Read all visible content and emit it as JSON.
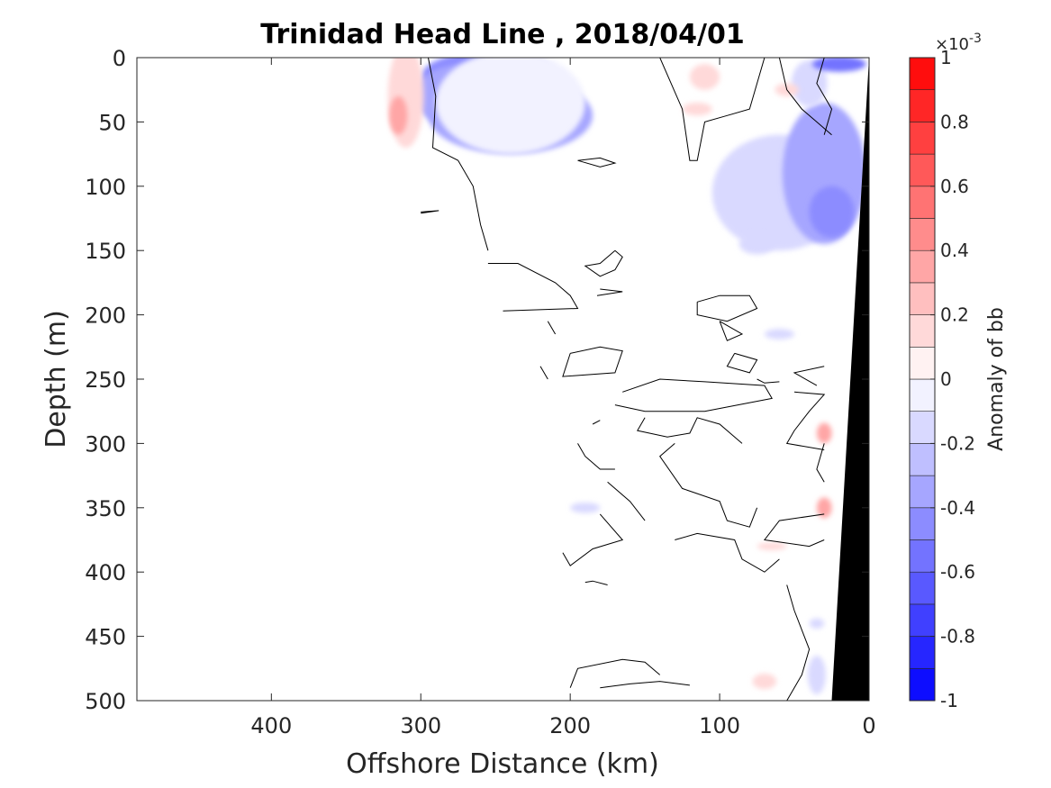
{
  "chart_data": {
    "type": "heatmap",
    "title": "Trinidad Head Line , 2018/04/01",
    "xlabel": "Offshore Distance (km)",
    "ylabel": "Depth (m)",
    "xlim": [
      490,
      0
    ],
    "ylim": [
      500,
      0
    ],
    "x_ticks": [
      400,
      300,
      200,
      100,
      0
    ],
    "x_tick_labels": [
      "400",
      "300",
      "200",
      "100",
      "0"
    ],
    "y_ticks": [
      0,
      50,
      100,
      150,
      200,
      250,
      300,
      350,
      400,
      450,
      500
    ],
    "y_tick_labels": [
      "0",
      "50",
      "100",
      "150",
      "200",
      "250",
      "300",
      "350",
      "400",
      "450",
      "500"
    ],
    "colorbar": {
      "label": "Anomaly of bb",
      "exponent_label": "×10",
      "exponent": "-3",
      "range": [
        -1,
        1
      ],
      "tick_values": [
        -1,
        -0.8,
        -0.6,
        -0.4,
        -0.2,
        0,
        0.2,
        0.4,
        0.6,
        0.8,
        1
      ],
      "tick_labels": [
        "-1",
        "-0.8",
        "-0.6",
        "-0.4",
        "-0.2",
        "0",
        "0.2",
        "0.4",
        "0.6",
        "0.8",
        "1"
      ],
      "levels": 20,
      "low_color": "#0000ff",
      "mid_color": "#ffffff",
      "high_color": "#ff0000"
    },
    "anomaly_patches": [
      {
        "x_km": 255,
        "depth_m": 5,
        "rx_km": 22,
        "ry_m": 8,
        "value": -1.0
      },
      {
        "x_km": 255,
        "depth_m": 15,
        "rx_km": 45,
        "ry_m": 20,
        "value": -0.5
      },
      {
        "x_km": 240,
        "depth_m": 45,
        "rx_km": 55,
        "ry_m": 30,
        "value": -0.3
      },
      {
        "x_km": 270,
        "depth_m": 30,
        "rx_km": 35,
        "ry_m": 25,
        "value": -0.3
      },
      {
        "x_km": 240,
        "depth_m": 35,
        "rx_km": 50,
        "ry_m": 40,
        "value": -0.1
      },
      {
        "x_km": 310,
        "depth_m": 30,
        "rx_km": 12,
        "ry_m": 40,
        "value": 0.2
      },
      {
        "x_km": 315,
        "depth_m": 45,
        "rx_km": 6,
        "ry_m": 15,
        "value": 0.3
      },
      {
        "x_km": 60,
        "depth_m": 105,
        "rx_km": 45,
        "ry_m": 45,
        "value": -0.2
      },
      {
        "x_km": 30,
        "depth_m": 90,
        "rx_km": 28,
        "ry_m": 55,
        "value": -0.35
      },
      {
        "x_km": 25,
        "depth_m": 120,
        "rx_km": 15,
        "ry_m": 20,
        "value": -0.5
      },
      {
        "x_km": 40,
        "depth_m": 20,
        "rx_km": 12,
        "ry_m": 18,
        "value": -0.2
      },
      {
        "x_km": 20,
        "depth_m": 5,
        "rx_km": 18,
        "ry_m": 6,
        "value": -0.6
      },
      {
        "x_km": 110,
        "depth_m": 15,
        "rx_km": 10,
        "ry_m": 10,
        "value": 0.2
      },
      {
        "x_km": 115,
        "depth_m": 40,
        "rx_km": 10,
        "ry_m": 5,
        "value": 0.2
      },
      {
        "x_km": 55,
        "depth_m": 25,
        "rx_km": 8,
        "ry_m": 5,
        "value": 0.15
      },
      {
        "x_km": 75,
        "depth_m": 145,
        "rx_km": 12,
        "ry_m": 8,
        "value": -0.15
      },
      {
        "x_km": 60,
        "depth_m": 215,
        "rx_km": 10,
        "ry_m": 4,
        "value": -0.15
      },
      {
        "x_km": 30,
        "depth_m": 292,
        "rx_km": 5,
        "ry_m": 8,
        "value": 0.3
      },
      {
        "x_km": 30,
        "depth_m": 350,
        "rx_km": 5,
        "ry_m": 8,
        "value": 0.3
      },
      {
        "x_km": 190,
        "depth_m": 350,
        "rx_km": 10,
        "ry_m": 4,
        "value": -0.15
      },
      {
        "x_km": 65,
        "depth_m": 380,
        "rx_km": 10,
        "ry_m": 3,
        "value": 0.15
      },
      {
        "x_km": 70,
        "depth_m": 485,
        "rx_km": 8,
        "ry_m": 6,
        "value": 0.2
      },
      {
        "x_km": 35,
        "depth_m": 480,
        "rx_km": 6,
        "ry_m": 15,
        "value": -0.15
      },
      {
        "x_km": 35,
        "depth_m": 440,
        "rx_km": 5,
        "ry_m": 4,
        "value": -0.15
      }
    ],
    "zero_contours": [
      [
        [
          295,
          0
        ],
        [
          290,
          30
        ],
        [
          292,
          70
        ],
        [
          275,
          80
        ],
        [
          265,
          100
        ],
        [
          260,
          130
        ],
        [
          255,
          150
        ]
      ],
      [
        [
          60,
          0
        ],
        [
          55,
          25
        ],
        [
          45,
          40
        ],
        [
          35,
          50
        ],
        [
          25,
          60
        ]
      ],
      [
        [
          140,
          0
        ],
        [
          125,
          40
        ],
        [
          120,
          80
        ],
        [
          115,
          80
        ],
        [
          110,
          50
        ],
        [
          95,
          45
        ],
        [
          80,
          40
        ],
        [
          70,
          0
        ]
      ],
      [
        [
          195,
          80
        ],
        [
          180,
          78
        ],
        [
          170,
          82
        ],
        [
          180,
          85
        ],
        [
          195,
          80
        ]
      ],
      [
        [
          300,
          120
        ],
        [
          288,
          119
        ],
        [
          300,
          121
        ]
      ],
      [
        [
          255,
          160
        ],
        [
          235,
          160
        ],
        [
          210,
          175
        ],
        [
          200,
          185
        ],
        [
          195,
          195
        ],
        [
          245,
          197
        ]
      ],
      [
        [
          170,
          150
        ],
        [
          180,
          160
        ],
        [
          190,
          162
        ],
        [
          180,
          170
        ],
        [
          170,
          165
        ],
        [
          165,
          155
        ],
        [
          170,
          150
        ]
      ],
      [
        [
          180,
          180
        ],
        [
          165,
          182
        ],
        [
          182,
          185
        ]
      ],
      [
        [
          115,
          190
        ],
        [
          100,
          185
        ],
        [
          80,
          185
        ],
        [
          75,
          195
        ],
        [
          95,
          205
        ],
        [
          115,
          200
        ],
        [
          115,
          190
        ]
      ],
      [
        [
          100,
          205
        ],
        [
          85,
          215
        ],
        [
          95,
          220
        ],
        [
          100,
          205
        ]
      ],
      [
        [
          200,
          230
        ],
        [
          180,
          225
        ],
        [
          165,
          228
        ],
        [
          170,
          245
        ],
        [
          205,
          248
        ],
        [
          200,
          230
        ]
      ],
      [
        [
          215,
          205
        ],
        [
          210,
          215
        ]
      ],
      [
        [
          220,
          240
        ],
        [
          215,
          250
        ]
      ],
      [
        [
          90,
          230
        ],
        [
          75,
          235
        ],
        [
          80,
          245
        ],
        [
          95,
          240
        ],
        [
          90,
          230
        ]
      ],
      [
        [
          75,
          250
        ],
        [
          70,
          253
        ],
        [
          60,
          252
        ]
      ],
      [
        [
          165,
          260
        ],
        [
          140,
          250
        ],
        [
          110,
          252
        ],
        [
          70,
          255
        ],
        [
          65,
          265
        ],
        [
          110,
          275
        ],
        [
          150,
          275
        ],
        [
          170,
          270
        ]
      ],
      [
        [
          150,
          280
        ],
        [
          155,
          290
        ],
        [
          135,
          295
        ],
        [
          120,
          292
        ],
        [
          115,
          280
        ],
        [
          100,
          285
        ],
        [
          90,
          295
        ],
        [
          85,
          300
        ]
      ],
      [
        [
          180,
          282
        ],
        [
          185,
          285
        ]
      ],
      [
        [
          195,
          300
        ],
        [
          190,
          310
        ],
        [
          180,
          320
        ],
        [
          170,
          320
        ]
      ],
      [
        [
          50,
          260
        ],
        [
          30,
          262
        ],
        [
          40,
          275
        ],
        [
          50,
          290
        ],
        [
          55,
          300
        ],
        [
          30,
          305
        ]
      ],
      [
        [
          30,
          240
        ],
        [
          50,
          245
        ],
        [
          35,
          255
        ]
      ],
      [
        [
          130,
          300
        ],
        [
          140,
          310
        ],
        [
          125,
          335
        ],
        [
          100,
          345
        ],
        [
          95,
          360
        ],
        [
          80,
          365
        ],
        [
          75,
          350
        ]
      ],
      [
        [
          175,
          330
        ],
        [
          160,
          345
        ],
        [
          150,
          360
        ]
      ],
      [
        [
          30,
          355
        ],
        [
          60,
          360
        ],
        [
          70,
          375
        ],
        [
          40,
          380
        ],
        [
          30,
          375
        ]
      ],
      [
        [
          130,
          375
        ],
        [
          115,
          370
        ],
        [
          90,
          375
        ],
        [
          85,
          390
        ],
        [
          70,
          400
        ],
        [
          60,
          390
        ]
      ],
      [
        [
          180,
          355
        ],
        [
          165,
          375
        ],
        [
          185,
          382
        ],
        [
          200,
          395
        ],
        [
          205,
          385
        ]
      ],
      [
        [
          175,
          410
        ],
        [
          185,
          407
        ],
        [
          190,
          408
        ]
      ],
      [
        [
          140,
          480
        ],
        [
          150,
          470
        ],
        [
          165,
          468
        ],
        [
          195,
          475
        ],
        [
          200,
          490
        ]
      ],
      [
        [
          180,
          490
        ],
        [
          160,
          487
        ],
        [
          140,
          485
        ],
        [
          120,
          488
        ]
      ],
      [
        [
          55,
          410
        ],
        [
          50,
          430
        ],
        [
          40,
          460
        ],
        [
          45,
          480
        ],
        [
          55,
          500
        ]
      ],
      [
        [
          30,
          0
        ],
        [
          35,
          20
        ],
        [
          25,
          40
        ],
        [
          30,
          60
        ]
      ],
      [
        [
          30,
          300
        ],
        [
          35,
          320
        ],
        [
          30,
          330
        ]
      ]
    ],
    "seafloor_polygon": [
      [
        0,
        0
      ],
      [
        -2,
        0
      ],
      [
        -2,
        500
      ],
      [
        25,
        500
      ],
      [
        5,
        100
      ],
      [
        0,
        0
      ]
    ],
    "seafloor_color": "#000000"
  }
}
